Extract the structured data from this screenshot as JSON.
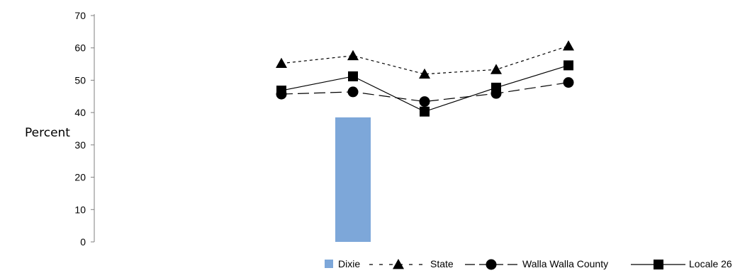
{
  "chart_data": {
    "type": "bar",
    "ylabel": "Percent",
    "xlabel": "",
    "ylim": [
      0,
      70
    ],
    "yticks": [
      "0",
      "10",
      "20",
      "30",
      "40",
      "50",
      "60",
      "70"
    ],
    "categories": [
      "",
      "",
      "",
      "",
      ""
    ],
    "series": [
      {
        "name": "Dixie",
        "kind": "bar",
        "color": "#7da7d9",
        "values": [
          null,
          38.5,
          null,
          null,
          null
        ]
      },
      {
        "name": "State",
        "kind": "line",
        "style": "dotted",
        "marker": "triangle",
        "color": "#000000",
        "values": [
          55.2,
          57.6,
          51.9,
          53.3,
          60.6
        ]
      },
      {
        "name": "Walla Walla County",
        "kind": "line",
        "style": "dashed",
        "marker": "circle",
        "color": "#000000",
        "values": [
          45.7,
          46.4,
          43.4,
          45.9,
          49.3
        ]
      },
      {
        "name": "Locale 26",
        "kind": "line",
        "style": "solid",
        "marker": "square",
        "color": "#000000",
        "values": [
          46.8,
          51.2,
          40.3,
          47.7,
          54.6
        ]
      }
    ],
    "legend": "bottom-right",
    "grid": false
  }
}
